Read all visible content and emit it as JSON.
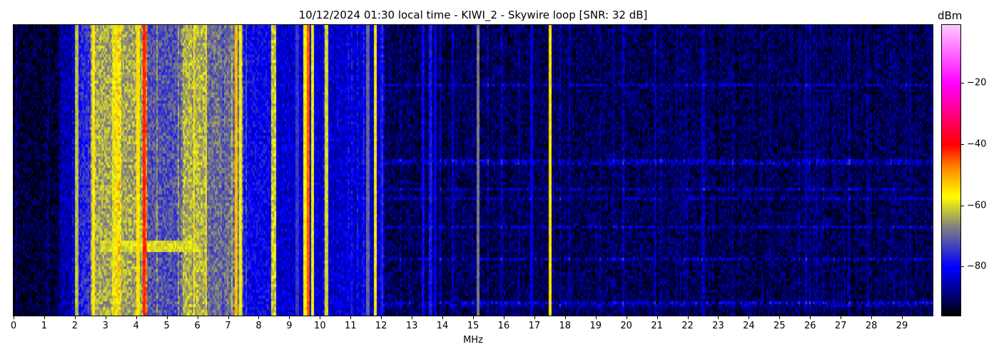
{
  "chart_data": {
    "type": "heatmap",
    "title": "10/12/2024 01:30 local time - KIWI_2 - Skywire loop [SNR: 32 dB]",
    "xlabel": "MHz",
    "ylabel": "",
    "xlim": [
      0,
      30
    ],
    "x_ticks": [
      "0",
      "1",
      "2",
      "3",
      "4",
      "5",
      "6",
      "7",
      "8",
      "9",
      "10",
      "11",
      "12",
      "13",
      "14",
      "15",
      "16",
      "17",
      "18",
      "19",
      "20",
      "21",
      "22",
      "23",
      "24",
      "25",
      "26",
      "27",
      "28",
      "29"
    ],
    "colorbar": {
      "label": "dBm",
      "range": [
        -96,
        -1
      ],
      "ticks": [
        "-20",
        "-40",
        "-60",
        "-80"
      ],
      "tick_values": [
        -20,
        -40,
        -60,
        -80
      ],
      "colormap": [
        "#000000",
        "#00008c",
        "#0000ff",
        "#808080",
        "#ffff00",
        "#ff8c00",
        "#ff0000",
        "#ff00ff",
        "#ffc8ff"
      ]
    },
    "spectrum_bands_dBm": [
      {
        "from": 0,
        "to": 1.5,
        "level": -93
      },
      {
        "from": 1.5,
        "to": 2.0,
        "level": -86
      },
      {
        "from": 2.0,
        "to": 2.5,
        "level": -76
      },
      {
        "from": 2.5,
        "to": 3.2,
        "level": -64
      },
      {
        "from": 3.2,
        "to": 3.5,
        "level": -58
      },
      {
        "from": 3.5,
        "to": 4.2,
        "level": -64
      },
      {
        "from": 4.2,
        "to": 4.35,
        "level": -47
      },
      {
        "from": 4.35,
        "to": 5.5,
        "level": -72
      },
      {
        "from": 5.5,
        "to": 6.3,
        "level": -63
      },
      {
        "from": 6.3,
        "to": 7.5,
        "level": -69
      },
      {
        "from": 7.5,
        "to": 8.4,
        "level": -80
      },
      {
        "from": 8.4,
        "to": 8.55,
        "level": -60
      },
      {
        "from": 8.55,
        "to": 10.25,
        "level": -83
      },
      {
        "from": 10.25,
        "to": 12.1,
        "level": -83
      },
      {
        "from": 12.1,
        "to": 30,
        "level": -91
      }
    ],
    "spectrum_lines_dBm": [
      {
        "freq": 2.05,
        "level": -62
      },
      {
        "freq": 2.6,
        "level": -55
      },
      {
        "freq": 4.05,
        "level": -55
      },
      {
        "freq": 4.25,
        "level": -42
      },
      {
        "freq": 7.25,
        "level": -52
      },
      {
        "freq": 7.4,
        "level": -58
      },
      {
        "freq": 9.25,
        "level": -75
      },
      {
        "freq": 9.5,
        "level": -55
      },
      {
        "freq": 9.6,
        "level": -45
      },
      {
        "freq": 9.75,
        "level": -58
      },
      {
        "freq": 10.2,
        "level": -60
      },
      {
        "freq": 11.55,
        "level": -70
      },
      {
        "freq": 11.8,
        "level": -55
      },
      {
        "freq": 12.0,
        "level": -78
      },
      {
        "freq": 13.35,
        "level": -80
      },
      {
        "freq": 13.6,
        "level": -78
      },
      {
        "freq": 13.75,
        "level": -82
      },
      {
        "freq": 15.15,
        "level": -68
      },
      {
        "freq": 16.9,
        "level": -82
      },
      {
        "freq": 17.5,
        "level": -55
      }
    ]
  }
}
